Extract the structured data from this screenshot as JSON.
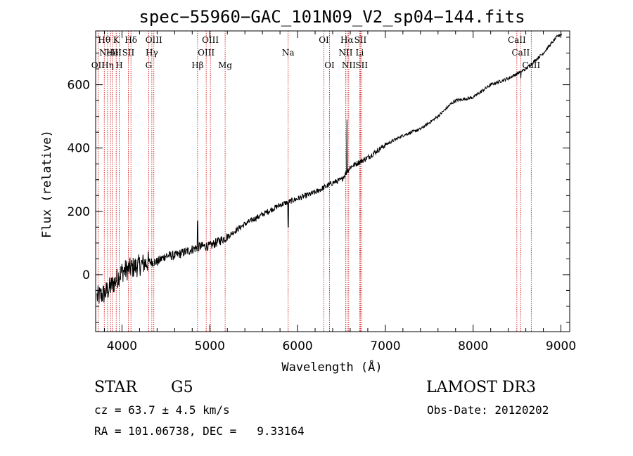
{
  "chart_data": {
    "type": "line",
    "title": "spec−55960−GAC_101N09_V2_sp04−144.fits",
    "xlabel": "Wavelength (Å)",
    "ylabel": "Flux (relative)",
    "xlim": [
      3700,
      9100
    ],
    "ylim": [
      -180,
      770
    ],
    "xticks": [
      4000,
      5000,
      6000,
      7000,
      8000,
      9000
    ],
    "yticks": [
      0,
      200,
      400,
      600
    ],
    "xtick_labels": [
      "4000",
      "5000",
      "6000",
      "7000",
      "8000",
      "9000"
    ],
    "ytick_labels": [
      "0",
      "200",
      "400",
      "600"
    ],
    "spectrum_anchors": {
      "x": [
        3720,
        3800,
        3900,
        4000,
        4100,
        4200,
        4300,
        4400,
        4500,
        4600,
        4700,
        4800,
        4900,
        5000,
        5200,
        5400,
        5600,
        5800,
        6000,
        6200,
        6400,
        6500,
        6600,
        6800,
        7000,
        7200,
        7400,
        7600,
        7750,
        7800,
        8000,
        8200,
        8400,
        8600,
        8800,
        8950,
        9000
      ],
      "y": [
        -70,
        -60,
        -30,
        10,
        20,
        30,
        40,
        40,
        60,
        60,
        70,
        80,
        90,
        90,
        120,
        160,
        190,
        220,
        240,
        260,
        290,
        300,
        340,
        370,
        410,
        440,
        460,
        500,
        540,
        550,
        560,
        600,
        620,
        650,
        700,
        750,
        760
      ]
    },
    "emission_spikes": [
      {
        "x": 4861,
        "y": 170
      },
      {
        "x": 6563,
        "y": 490
      }
    ],
    "absorption_dips": [
      {
        "x": 5893,
        "y": 150
      },
      {
        "x": 8542,
        "y": 620
      }
    ],
    "spectral_lines": [
      {
        "wl": 3727,
        "labels": [
          "OII"
        ],
        "row": 3
      },
      {
        "wl": 3798,
        "labels": [
          "Hθ"
        ],
        "row": 1
      },
      {
        "wl": 3836,
        "labels": [
          "Hη"
        ],
        "row": 3
      },
      {
        "wl": 3869,
        "labels": [
          "NeIII"
        ],
        "row": 2
      },
      {
        "wl": 3889,
        "labels": [
          "He"
        ],
        "row": 2
      },
      {
        "wl": 3934,
        "labels": [
          "K"
        ],
        "row": 1
      },
      {
        "wl": 3968,
        "labels": [
          "H"
        ],
        "row": 3
      },
      {
        "wl": 4072,
        "labels": [
          "SII"
        ],
        "row": 2
      },
      {
        "wl": 4102,
        "labels": [
          "Hδ"
        ],
        "row": 1
      },
      {
        "wl": 4304,
        "labels": [
          "G"
        ],
        "row": 3
      },
      {
        "wl": 4340,
        "labels": [
          "Hγ"
        ],
        "row": 2
      },
      {
        "wl": 4363,
        "labels": [
          "OIII"
        ],
        "row": 1
      },
      {
        "wl": 4861,
        "labels": [
          "Hβ"
        ],
        "row": 3
      },
      {
        "wl": 4959,
        "labels": [
          "OIII"
        ],
        "row": 2
      },
      {
        "wl": 5007,
        "labels": [
          "OIII"
        ],
        "row": 1
      },
      {
        "wl": 5175,
        "labels": [
          "Mg"
        ],
        "row": 3
      },
      {
        "wl": 5893,
        "labels": [
          "Na"
        ],
        "row": 2
      },
      {
        "wl": 6300,
        "labels": [
          "OI"
        ],
        "row": 1
      },
      {
        "wl": 6364,
        "labels": [
          "OI"
        ],
        "row": 3
      },
      {
        "wl": 6548,
        "labels": [
          "NII"
        ],
        "row": 2
      },
      {
        "wl": 6563,
        "labels": [
          "Hα"
        ],
        "row": 1
      },
      {
        "wl": 6583,
        "labels": [
          "NII"
        ],
        "row": 3
      },
      {
        "wl": 6708,
        "labels": [
          "Li"
        ],
        "row": 2
      },
      {
        "wl": 6716,
        "labels": [
          "SII"
        ],
        "row": 1
      },
      {
        "wl": 6731,
        "labels": [
          "SII"
        ],
        "row": 3
      },
      {
        "wl": 8498,
        "labels": [
          "CaII"
        ],
        "row": 1
      },
      {
        "wl": 8542,
        "labels": [
          "CaII"
        ],
        "row": 2
      },
      {
        "wl": 8662,
        "labels": [
          "CaII"
        ],
        "row": 3
      }
    ],
    "line_color": "#000000",
    "marker_color": "#cc0000"
  },
  "info": {
    "class_text": "STAR",
    "subclass_text": "G5",
    "survey_text": "LAMOST DR3",
    "cz_text": "cz = 63.7 ± 4.5 km/s",
    "obsdate_text": "Obs-Date: 20120202",
    "radec_text": "RA = 101.06738, DEC =   9.33164"
  }
}
